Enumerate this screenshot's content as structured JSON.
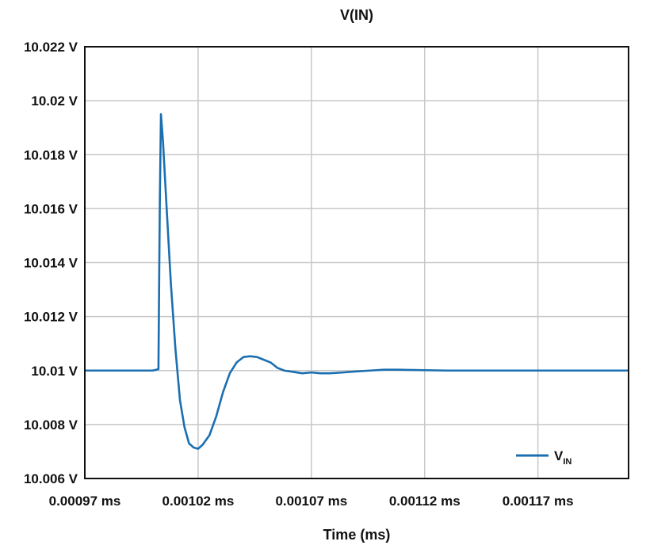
{
  "chart_data": {
    "type": "line",
    "title": "V(IN)",
    "xlabel": "Time (ms)",
    "ylabel": "",
    "xlim": [
      0.00097,
      0.00121
    ],
    "ylim": [
      10.006,
      10.022
    ],
    "x_ticks": [
      0.00097,
      0.00102,
      0.00107,
      0.00112,
      0.00117
    ],
    "x_tick_labels": [
      "0.00097 ms",
      "0.00102 ms",
      "0.00107 ms",
      "0.00112 ms",
      "0.00117 ms"
    ],
    "y_ticks": [
      10.006,
      10.008,
      10.01,
      10.012,
      10.014,
      10.016,
      10.018,
      10.02,
      10.022
    ],
    "y_tick_labels": [
      "10.006 V",
      "10.008 V",
      "10.01 V",
      "10.012 V",
      "10.014 V",
      "10.016 V",
      "10.018 V",
      "10.02 V",
      "10.022 V"
    ],
    "grid": true,
    "legend_position": "bottom-right",
    "series": [
      {
        "name": "V",
        "name_subscript": "IN",
        "color": "#1b6fb0",
        "x": [
          0.00097,
          0.001,
          0.0010025,
          0.0010031,
          0.0010036,
          0.0010045,
          0.001006,
          0.001008,
          0.00101,
          0.001012,
          0.001014,
          0.001016,
          0.001018,
          0.00102,
          0.001022,
          0.001025,
          0.001028,
          0.001031,
          0.001034,
          0.001037,
          0.00104,
          0.001043,
          0.001046,
          0.001049,
          0.001052,
          0.001055,
          0.001058,
          0.001062,
          0.001066,
          0.00107,
          0.001074,
          0.001078,
          0.001084,
          0.00109,
          0.001096,
          0.001102,
          0.001108,
          0.001115,
          0.00113,
          0.00115,
          0.00117,
          0.00119,
          0.00121
        ],
        "y": [
          10.01,
          10.01,
          10.01005,
          10.0162,
          10.0195,
          10.0185,
          10.0162,
          10.0132,
          10.0108,
          10.0089,
          10.0079,
          10.0073,
          10.00715,
          10.0071,
          10.00725,
          10.0076,
          10.0083,
          10.0092,
          10.0099,
          10.0103,
          10.0105,
          10.01053,
          10.0105,
          10.0104,
          10.0103,
          10.0101,
          10.01,
          10.00995,
          10.0099,
          10.00993,
          10.0099,
          10.0099,
          10.00993,
          10.00997,
          10.01,
          10.01003,
          10.01003,
          10.01002,
          10.01,
          10.01,
          10.01,
          10.01,
          10.01
        ]
      }
    ]
  }
}
